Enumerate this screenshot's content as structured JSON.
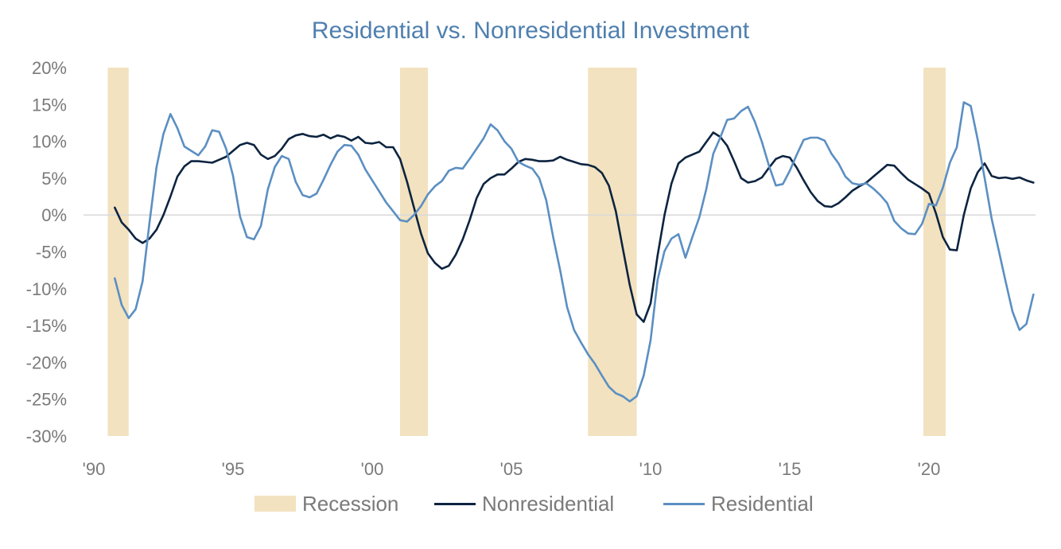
{
  "chart_data": {
    "type": "line",
    "title": "Residential vs. Nonresidential Investment",
    "xlabel": "",
    "ylabel": "",
    "x_tick_labels": [
      "'90",
      "'95",
      "'00",
      "'05",
      "'10",
      "'15",
      "'20"
    ],
    "x_tick_years": [
      1990,
      1995,
      2000,
      2005,
      2010,
      2015,
      2020
    ],
    "xlim": [
      1990,
      2024
    ],
    "y_tick_labels": [
      "20%",
      "15%",
      "10%",
      "5%",
      "0%",
      "-5%",
      "-10%",
      "-15%",
      "-20%",
      "-25%",
      "-30%"
    ],
    "y_tick_values": [
      20,
      15,
      10,
      5,
      0,
      -5,
      -10,
      -15,
      -20,
      -25,
      -30
    ],
    "ylim": [
      -30,
      20
    ],
    "grid": "zero-line only",
    "legend_position": "bottom",
    "recession_label": "Recession",
    "recessions": [
      [
        1990.5,
        1991.25
      ],
      [
        2001.0,
        2002.0
      ],
      [
        2007.75,
        2009.5
      ],
      [
        2019.8,
        2020.6
      ]
    ],
    "series": [
      {
        "name": "Nonresidential",
        "color": "#0d2440",
        "points": [
          [
            1990.75,
            1.0
          ],
          [
            1991.0,
            -1.0
          ],
          [
            1991.25,
            -2.0
          ],
          [
            1991.5,
            -3.2
          ],
          [
            1991.75,
            -3.8
          ],
          [
            1992.0,
            -3.2
          ],
          [
            1992.25,
            -2.0
          ],
          [
            1992.5,
            0.0
          ],
          [
            1992.75,
            2.5
          ],
          [
            1993.0,
            5.2
          ],
          [
            1993.25,
            6.6
          ],
          [
            1993.5,
            7.3
          ],
          [
            1993.75,
            7.3
          ],
          [
            1994.0,
            7.2
          ],
          [
            1994.25,
            7.1
          ],
          [
            1994.5,
            7.5
          ],
          [
            1994.75,
            7.9
          ],
          [
            1995.0,
            8.7
          ],
          [
            1995.25,
            9.5
          ],
          [
            1995.5,
            9.8
          ],
          [
            1995.75,
            9.5
          ],
          [
            1996.0,
            8.2
          ],
          [
            1996.25,
            7.6
          ],
          [
            1996.5,
            8.0
          ],
          [
            1996.75,
            9.0
          ],
          [
            1997.0,
            10.3
          ],
          [
            1997.25,
            10.8
          ],
          [
            1997.5,
            11.0
          ],
          [
            1997.75,
            10.7
          ],
          [
            1998.0,
            10.6
          ],
          [
            1998.25,
            10.9
          ],
          [
            1998.5,
            10.4
          ],
          [
            1998.75,
            10.8
          ],
          [
            1999.0,
            10.6
          ],
          [
            1999.25,
            10.1
          ],
          [
            1999.5,
            10.6
          ],
          [
            1999.75,
            9.8
          ],
          [
            2000.0,
            9.7
          ],
          [
            2000.25,
            9.9
          ],
          [
            2000.5,
            9.2
          ],
          [
            2000.75,
            9.2
          ],
          [
            2001.0,
            7.6
          ],
          [
            2001.25,
            4.5
          ],
          [
            2001.5,
            1.0
          ],
          [
            2001.75,
            -2.5
          ],
          [
            2002.0,
            -5.2
          ],
          [
            2002.25,
            -6.5
          ],
          [
            2002.5,
            -7.3
          ],
          [
            2002.75,
            -6.9
          ],
          [
            2003.0,
            -5.4
          ],
          [
            2003.25,
            -3.3
          ],
          [
            2003.5,
            -0.7
          ],
          [
            2003.75,
            2.3
          ],
          [
            2004.0,
            4.2
          ],
          [
            2004.25,
            5.0
          ],
          [
            2004.5,
            5.5
          ],
          [
            2004.75,
            5.5
          ],
          [
            2005.0,
            6.3
          ],
          [
            2005.25,
            7.2
          ],
          [
            2005.5,
            7.6
          ],
          [
            2005.75,
            7.5
          ],
          [
            2006.0,
            7.3
          ],
          [
            2006.25,
            7.3
          ],
          [
            2006.5,
            7.4
          ],
          [
            2006.75,
            7.9
          ],
          [
            2007.0,
            7.5
          ],
          [
            2007.25,
            7.2
          ],
          [
            2007.5,
            6.9
          ],
          [
            2007.75,
            6.8
          ],
          [
            2008.0,
            6.5
          ],
          [
            2008.25,
            5.7
          ],
          [
            2008.5,
            4.0
          ],
          [
            2008.75,
            0.5
          ],
          [
            2009.0,
            -4.5
          ],
          [
            2009.25,
            -9.5
          ],
          [
            2009.5,
            -13.5
          ],
          [
            2009.75,
            -14.5
          ],
          [
            2010.0,
            -12.0
          ],
          [
            2010.25,
            -5.5
          ],
          [
            2010.5,
            0.0
          ],
          [
            2010.75,
            4.3
          ],
          [
            2011.0,
            7.0
          ],
          [
            2011.25,
            7.8
          ],
          [
            2011.5,
            8.2
          ],
          [
            2011.75,
            8.6
          ],
          [
            2012.0,
            9.9
          ],
          [
            2012.25,
            11.2
          ],
          [
            2012.5,
            10.6
          ],
          [
            2012.75,
            9.4
          ],
          [
            2013.0,
            7.3
          ],
          [
            2013.25,
            5.0
          ],
          [
            2013.5,
            4.4
          ],
          [
            2013.75,
            4.6
          ],
          [
            2014.0,
            5.1
          ],
          [
            2014.25,
            6.4
          ],
          [
            2014.5,
            7.6
          ],
          [
            2014.75,
            8.0
          ],
          [
            2015.0,
            7.8
          ],
          [
            2015.25,
            6.4
          ],
          [
            2015.5,
            4.7
          ],
          [
            2015.75,
            3.1
          ],
          [
            2016.0,
            1.9
          ],
          [
            2016.25,
            1.2
          ],
          [
            2016.5,
            1.1
          ],
          [
            2016.75,
            1.6
          ],
          [
            2017.0,
            2.4
          ],
          [
            2017.25,
            3.3
          ],
          [
            2017.5,
            3.9
          ],
          [
            2017.75,
            4.4
          ],
          [
            2018.0,
            5.2
          ],
          [
            2018.25,
            6.0
          ],
          [
            2018.5,
            6.8
          ],
          [
            2018.75,
            6.7
          ],
          [
            2019.0,
            5.7
          ],
          [
            2019.25,
            4.8
          ],
          [
            2019.5,
            4.2
          ],
          [
            2019.75,
            3.6
          ],
          [
            2020.0,
            2.9
          ],
          [
            2020.25,
            0.2
          ],
          [
            2020.5,
            -3.0
          ],
          [
            2020.75,
            -4.7
          ],
          [
            2021.0,
            -4.8
          ],
          [
            2021.25,
            0.0
          ],
          [
            2021.5,
            3.6
          ],
          [
            2021.75,
            5.8
          ],
          [
            2022.0,
            7.0
          ],
          [
            2022.25,
            5.3
          ],
          [
            2022.5,
            5.0
          ],
          [
            2022.75,
            5.1
          ],
          [
            2023.0,
            4.9
          ],
          [
            2023.25,
            5.1
          ],
          [
            2023.5,
            4.7
          ],
          [
            2023.75,
            4.4
          ]
        ]
      },
      {
        "name": "Residential",
        "color": "#5b8fc2",
        "points": [
          [
            1990.75,
            -8.6
          ],
          [
            1991.0,
            -12.2
          ],
          [
            1991.25,
            -14.0
          ],
          [
            1991.5,
            -12.8
          ],
          [
            1991.75,
            -9.0
          ],
          [
            1992.0,
            -1.0
          ],
          [
            1992.25,
            6.5
          ],
          [
            1992.5,
            11.0
          ],
          [
            1992.75,
            13.7
          ],
          [
            1993.0,
            11.8
          ],
          [
            1993.25,
            9.3
          ],
          [
            1993.5,
            8.7
          ],
          [
            1993.75,
            8.1
          ],
          [
            1994.0,
            9.3
          ],
          [
            1994.25,
            11.5
          ],
          [
            1994.5,
            11.3
          ],
          [
            1994.75,
            9.0
          ],
          [
            1995.0,
            5.3
          ],
          [
            1995.25,
            -0.2
          ],
          [
            1995.5,
            -3.0
          ],
          [
            1995.75,
            -3.3
          ],
          [
            1996.0,
            -1.5
          ],
          [
            1996.25,
            3.5
          ],
          [
            1996.5,
            6.5
          ],
          [
            1996.75,
            8.0
          ],
          [
            1997.0,
            7.6
          ],
          [
            1997.25,
            4.5
          ],
          [
            1997.5,
            2.7
          ],
          [
            1997.75,
            2.4
          ],
          [
            1998.0,
            2.9
          ],
          [
            1998.25,
            4.8
          ],
          [
            1998.5,
            6.8
          ],
          [
            1998.75,
            8.6
          ],
          [
            1999.0,
            9.5
          ],
          [
            1999.25,
            9.4
          ],
          [
            1999.5,
            8.2
          ],
          [
            1999.75,
            6.2
          ],
          [
            2000.0,
            4.7
          ],
          [
            2000.25,
            3.2
          ],
          [
            2000.5,
            1.7
          ],
          [
            2000.75,
            0.5
          ],
          [
            2001.0,
            -0.7
          ],
          [
            2001.25,
            -0.9
          ],
          [
            2001.5,
            0.0
          ],
          [
            2001.75,
            1.2
          ],
          [
            2002.0,
            2.8
          ],
          [
            2002.25,
            3.9
          ],
          [
            2002.5,
            4.6
          ],
          [
            2002.75,
            6.0
          ],
          [
            2003.0,
            6.4
          ],
          [
            2003.25,
            6.3
          ],
          [
            2003.5,
            7.6
          ],
          [
            2003.75,
            9.0
          ],
          [
            2004.0,
            10.4
          ],
          [
            2004.25,
            12.3
          ],
          [
            2004.5,
            11.5
          ],
          [
            2004.75,
            10.0
          ],
          [
            2005.0,
            9.0
          ],
          [
            2005.25,
            7.2
          ],
          [
            2005.5,
            6.7
          ],
          [
            2005.75,
            6.3
          ],
          [
            2006.0,
            5.0
          ],
          [
            2006.25,
            2.0
          ],
          [
            2006.5,
            -3.0
          ],
          [
            2006.75,
            -7.5
          ],
          [
            2007.0,
            -12.5
          ],
          [
            2007.25,
            -15.6
          ],
          [
            2007.5,
            -17.3
          ],
          [
            2007.75,
            -18.9
          ],
          [
            2008.0,
            -20.2
          ],
          [
            2008.25,
            -21.8
          ],
          [
            2008.5,
            -23.3
          ],
          [
            2008.75,
            -24.2
          ],
          [
            2009.0,
            -24.6
          ],
          [
            2009.25,
            -25.3
          ],
          [
            2009.5,
            -24.6
          ],
          [
            2009.75,
            -21.8
          ],
          [
            2010.0,
            -17.0
          ],
          [
            2010.25,
            -8.8
          ],
          [
            2010.5,
            -4.9
          ],
          [
            2010.75,
            -3.2
          ],
          [
            2011.0,
            -2.6
          ],
          [
            2011.25,
            -5.8
          ],
          [
            2011.5,
            -3.0
          ],
          [
            2011.75,
            -0.3
          ],
          [
            2012.0,
            3.5
          ],
          [
            2012.25,
            8.3
          ],
          [
            2012.5,
            10.5
          ],
          [
            2012.75,
            12.9
          ],
          [
            2013.0,
            13.1
          ],
          [
            2013.25,
            14.1
          ],
          [
            2013.5,
            14.7
          ],
          [
            2013.75,
            12.6
          ],
          [
            2014.0,
            9.9
          ],
          [
            2014.25,
            6.7
          ],
          [
            2014.5,
            4.0
          ],
          [
            2014.75,
            4.2
          ],
          [
            2015.0,
            6.0
          ],
          [
            2015.25,
            8.2
          ],
          [
            2015.5,
            10.2
          ],
          [
            2015.75,
            10.5
          ],
          [
            2016.0,
            10.5
          ],
          [
            2016.25,
            10.1
          ],
          [
            2016.5,
            8.3
          ],
          [
            2016.75,
            7.0
          ],
          [
            2017.0,
            5.2
          ],
          [
            2017.25,
            4.3
          ],
          [
            2017.5,
            4.1
          ],
          [
            2017.75,
            4.3
          ],
          [
            2018.0,
            3.6
          ],
          [
            2018.25,
            2.7
          ],
          [
            2018.5,
            1.6
          ],
          [
            2018.75,
            -0.8
          ],
          [
            2019.0,
            -1.8
          ],
          [
            2019.25,
            -2.5
          ],
          [
            2019.5,
            -2.6
          ],
          [
            2019.75,
            -1.2
          ],
          [
            2020.0,
            1.5
          ],
          [
            2020.25,
            1.3
          ],
          [
            2020.5,
            3.7
          ],
          [
            2020.75,
            7.1
          ],
          [
            2021.0,
            9.2
          ],
          [
            2021.25,
            15.3
          ],
          [
            2021.5,
            14.8
          ],
          [
            2021.75,
            10.2
          ],
          [
            2022.0,
            5.0
          ],
          [
            2022.25,
            -0.5
          ],
          [
            2022.5,
            -4.7
          ],
          [
            2022.75,
            -9.0
          ],
          [
            2023.0,
            -13.1
          ],
          [
            2023.25,
            -15.6
          ],
          [
            2023.5,
            -14.8
          ],
          [
            2023.75,
            -10.8
          ]
        ]
      }
    ]
  }
}
